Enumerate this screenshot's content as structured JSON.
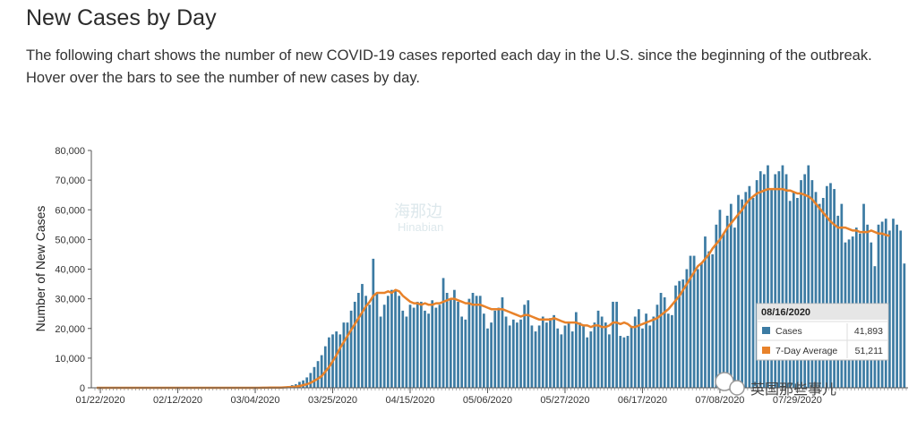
{
  "page": {
    "title": "New Cases by Day",
    "description": "The following chart shows the number of new COVID-19 cases reported each day in the U.S. since the beginning of the outbreak. Hover over the bars to see the number of new cases by day."
  },
  "chart_data": {
    "type": "bar",
    "title": "New Cases by Day",
    "ylabel": "Number of New Cases",
    "xlabel": "",
    "ylim": [
      0,
      80000
    ],
    "y_ticks": [
      "0",
      "10,000",
      "20,000",
      "30,000",
      "40,000",
      "50,000",
      "60,000",
      "70,000",
      "80,000"
    ],
    "x_tick_labels": [
      "01/22/2020",
      "02/12/2020",
      "03/04/2020",
      "03/25/2020",
      "04/15/2020",
      "05/06/2020",
      "05/27/2020",
      "06/17/2020",
      "07/08/2020",
      "07/29/2020"
    ],
    "x_tick_indices": [
      0,
      21,
      42,
      63,
      84,
      105,
      126,
      147,
      168,
      189
    ],
    "start_date": "01/22/2020",
    "end_date": "08/16/2020",
    "series": [
      {
        "name": "Cases",
        "type": "bar",
        "color": "#3c7ba3",
        "values": [
          0,
          0,
          0,
          0,
          0,
          0,
          0,
          0,
          0,
          0,
          0,
          0,
          0,
          0,
          0,
          0,
          0,
          0,
          0,
          0,
          0,
          0,
          0,
          0,
          0,
          0,
          0,
          0,
          0,
          0,
          0,
          0,
          0,
          0,
          0,
          0,
          0,
          0,
          0,
          0,
          0,
          0,
          5,
          10,
          20,
          30,
          50,
          80,
          100,
          150,
          250,
          400,
          600,
          900,
          1200,
          2000,
          2500,
          3500,
          5000,
          7000,
          9000,
          11000,
          14000,
          17000,
          18000,
          19000,
          18000,
          22000,
          22000,
          26000,
          29000,
          32000,
          35000,
          31000,
          28000,
          43500,
          32000,
          24000,
          28000,
          31000,
          33000,
          33000,
          31000,
          26000,
          24000,
          28000,
          27000,
          29000,
          29000,
          26000,
          25000,
          29500,
          27000,
          28000,
          37000,
          32000,
          30000,
          33000,
          29000,
          24000,
          23000,
          30000,
          32000,
          31000,
          31000,
          25000,
          20000,
          22000,
          26000,
          27000,
          30500,
          24000,
          21000,
          23000,
          22000,
          23000,
          28000,
          29500,
          21000,
          19000,
          21000,
          24000,
          22000,
          23500,
          24500,
          20000,
          18000,
          21000,
          22000,
          19000,
          25500,
          22000,
          21000,
          17000,
          19000,
          22000,
          26000,
          24000,
          22000,
          18000,
          29000,
          29000,
          17500,
          17000,
          17500,
          20500,
          24000,
          26500,
          20000,
          25000,
          21000,
          24000,
          28000,
          32000,
          30500,
          25000,
          24500,
          34500,
          36000,
          36500,
          40000,
          44500,
          44500,
          40000,
          42000,
          51000,
          46000,
          45000,
          55000,
          60000,
          52000,
          58000,
          62000,
          54000,
          65000,
          63500,
          66000,
          68000,
          64000,
          70000,
          73000,
          72000,
          75000,
          67000,
          72000,
          73000,
          75000,
          72000,
          63000,
          66000,
          64000,
          70000,
          72000,
          75000,
          70000,
          66000,
          62000,
          64000,
          68000,
          69000,
          67000,
          58000,
          62000,
          49000,
          50000,
          51000,
          54000,
          52000,
          62000,
          55000,
          49000,
          41000,
          55000,
          56000,
          57000,
          53000,
          57000,
          55000,
          53000,
          41893
        ]
      },
      {
        "name": "7-Day Average",
        "type": "line",
        "color": "#e8822a",
        "values": [
          0,
          0,
          0,
          0,
          0,
          0,
          0,
          0,
          0,
          0,
          0,
          0,
          0,
          0,
          0,
          0,
          0,
          0,
          0,
          0,
          0,
          0,
          0,
          0,
          0,
          0,
          0,
          0,
          0,
          0,
          0,
          0,
          0,
          0,
          0,
          0,
          0,
          0,
          0,
          0,
          0,
          0,
          0,
          0,
          10,
          20,
          30,
          50,
          60,
          70,
          100,
          150,
          200,
          300,
          400,
          600,
          900,
          1200,
          1700,
          2400,
          3100,
          4000,
          5500,
          7000,
          9000,
          11000,
          13500,
          15500,
          17500,
          19500,
          21500,
          23500,
          25500,
          27500,
          29000,
          31000,
          32000,
          32000,
          32000,
          32500,
          32000,
          33000,
          32500,
          31000,
          30000,
          29000,
          28500,
          28500,
          28000,
          28500,
          28000,
          28000,
          28500,
          28500,
          29000,
          29500,
          30000,
          30000,
          29500,
          29000,
          28500,
          28500,
          28000,
          28000,
          28000,
          27500,
          27000,
          26500,
          26500,
          26500,
          26500,
          26000,
          25500,
          25000,
          24500,
          24000,
          24500,
          24500,
          24000,
          23500,
          23000,
          23000,
          23000,
          23000,
          23500,
          23000,
          22500,
          22000,
          22000,
          22000,
          22000,
          21500,
          21000,
          21000,
          20500,
          21000,
          21000,
          20500,
          20500,
          21000,
          22000,
          22000,
          21500,
          22000,
          21500,
          20500,
          20500,
          21000,
          21500,
          22000,
          22500,
          23000,
          23500,
          24500,
          25500,
          26500,
          28000,
          29500,
          31000,
          33000,
          35000,
          37000,
          39000,
          41000,
          42000,
          43500,
          45000,
          47000,
          48500,
          50000,
          52000,
          54000,
          55500,
          57000,
          58500,
          60000,
          62000,
          63500,
          64500,
          65500,
          66000,
          66500,
          67000,
          67000,
          67000,
          67000,
          67000,
          66500,
          66500,
          66000,
          65500,
          65500,
          65000,
          64500,
          63500,
          62000,
          60500,
          59000,
          57500,
          56000,
          55000,
          54000,
          54000,
          54000,
          53500,
          53000,
          53000,
          52500,
          52500,
          52500,
          53000,
          52500,
          52000,
          52000,
          51500,
          51211
        ]
      }
    ],
    "tooltip": {
      "date": "08/16/2020",
      "rows": [
        {
          "label": "Cases",
          "value": "41,893",
          "color": "#3c7ba3"
        },
        {
          "label": "7-Day Average",
          "value": "51,211",
          "color": "#e8822a"
        }
      ]
    }
  },
  "watermark": {
    "text": "海那边",
    "sub": "Hinabian"
  },
  "brand": {
    "text": "英国那些事儿"
  }
}
